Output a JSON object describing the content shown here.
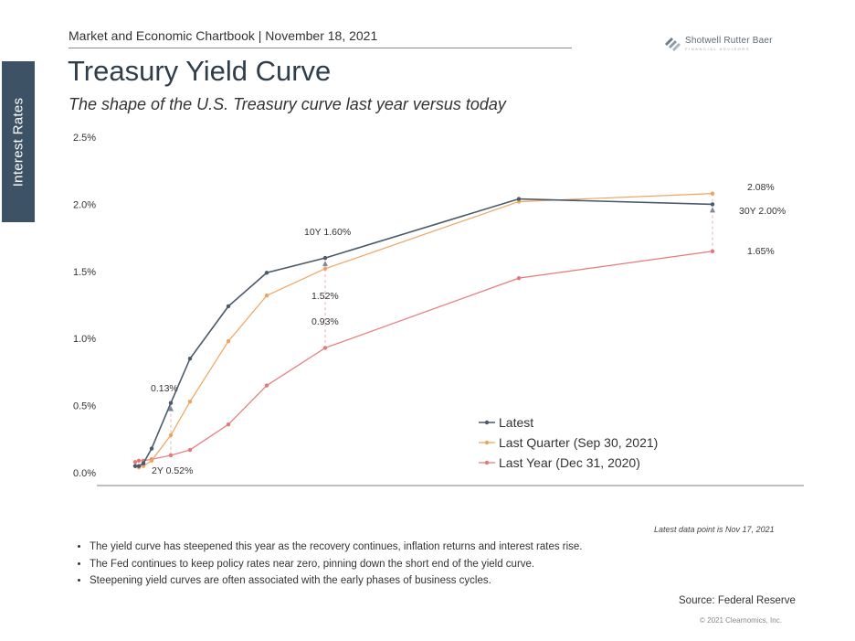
{
  "side_tab": {
    "label": "Interest Rates"
  },
  "header": {
    "text": "Market and Economic Chartbook | November 18, 2021"
  },
  "logo": {
    "name": "Shotwell Rutter Baer",
    "tagline": "FINANCIAL ADVISORS"
  },
  "title": "Treasury Yield Curve",
  "subtitle": "The shape of the U.S. Treasury curve last year versus today",
  "colors": {
    "latest": "#4a5a6a",
    "last_quarter": "#eea460",
    "last_year": "#e47a78",
    "side_tab": "#3e5266"
  },
  "chart_data": {
    "type": "line",
    "x": [
      0.083,
      0.25,
      0.5,
      1,
      2,
      3,
      5,
      7,
      10,
      20,
      30
    ],
    "xlabel": "",
    "ylabel": "",
    "ylim": [
      0,
      2.5
    ],
    "yticks": [
      "0.0%",
      "0.5%",
      "1.0%",
      "1.5%",
      "2.0%",
      "2.5%"
    ],
    "grid": false,
    "legend": "bottom-right",
    "series": [
      {
        "name": "Latest",
        "values": [
          0.05,
          0.05,
          0.07,
          0.18,
          0.52,
          0.85,
          1.24,
          1.49,
          1.6,
          2.04,
          2.0
        ]
      },
      {
        "name": "Last Quarter (Sep 30, 2021)",
        "values": [
          0.05,
          0.04,
          0.05,
          0.09,
          0.28,
          0.53,
          0.98,
          1.32,
          1.52,
          2.02,
          2.08
        ]
      },
      {
        "name": "Last Year (Dec 31, 2020)",
        "values": [
          0.08,
          0.09,
          0.09,
          0.1,
          0.13,
          0.17,
          0.36,
          0.65,
          0.93,
          1.45,
          1.65
        ]
      }
    ],
    "annotations": [
      "0.13%",
      "2Y 0.52%",
      "10Y 1.60%",
      "1.52%",
      "0.93%",
      "2.08%",
      "30Y 2.00%",
      "1.65%"
    ]
  },
  "footnote": "Latest data point is Nov 17, 2021",
  "bullets": [
    "The yield curve has steepened this year as the recovery continues, inflation returns and interest rates rise.",
    "The Fed continues to keep policy rates near zero, pinning down the short end of the yield curve.",
    "Steepening yield curves are often associated with the early phases of business cycles."
  ],
  "source": "Source: Federal Reserve",
  "copyright": "© 2021 Clearnomics, Inc."
}
